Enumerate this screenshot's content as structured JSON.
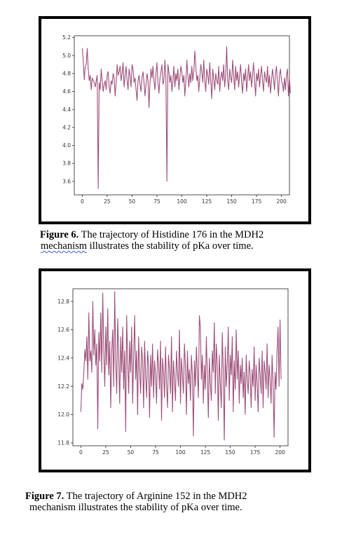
{
  "chart_data": [
    {
      "type": "line",
      "title": "",
      "xlabel": "",
      "ylabel": "",
      "xlim": [
        -8,
        208
      ],
      "ylim": [
        3.45,
        5.22
      ],
      "xticks": [
        0,
        25,
        50,
        75,
        100,
        125,
        150,
        175,
        200
      ],
      "xtick_labels": [
        "0",
        "25",
        "50",
        "75",
        "100",
        "125",
        "150",
        "175",
        "200"
      ],
      "yticks": [
        3.6,
        3.8,
        4.0,
        4.2,
        4.4,
        4.6,
        4.8,
        5.0,
        5.2
      ],
      "ytick_labels": [
        "3.6",
        "3.8",
        "4.0",
        "4.2",
        "4.4",
        "4.6",
        "4.8",
        "5.0",
        "5.2"
      ],
      "grid": false,
      "line_color": "#9e4f7a",
      "series": [
        {
          "values": [
            5.08,
            4.95,
            4.73,
            4.88,
            4.9,
            5.08,
            4.85,
            4.72,
            4.78,
            4.62,
            4.75,
            4.72,
            4.7,
            4.65,
            4.72,
            4.78,
            3.52,
            4.7,
            4.62,
            4.85,
            4.72,
            4.6,
            4.68,
            4.72,
            4.62,
            4.78,
            4.82,
            4.65,
            4.58,
            4.72,
            4.68,
            4.8,
            4.75,
            4.55,
            4.7,
            4.9,
            4.78,
            4.82,
            4.88,
            4.72,
            4.8,
            4.92,
            4.65,
            4.78,
            4.88,
            4.72,
            4.62,
            4.85,
            4.78,
            4.65,
            4.9,
            4.85,
            4.7,
            4.75,
            4.62,
            4.5,
            4.72,
            4.78,
            4.68,
            4.6,
            4.75,
            4.82,
            4.7,
            4.55,
            4.68,
            4.8,
            4.72,
            4.42,
            4.7,
            4.85,
            4.75,
            4.88,
            4.72,
            4.62,
            4.8,
            4.92,
            4.7,
            4.58,
            4.75,
            4.82,
            4.9,
            4.68,
            4.72,
            4.95,
            4.75,
            3.6,
            4.9,
            4.82,
            4.7,
            4.78,
            4.6,
            4.72,
            4.88,
            4.65,
            4.8,
            4.72,
            4.85,
            4.62,
            4.75,
            4.88,
            4.82,
            4.7,
            4.78,
            4.55,
            4.72,
            4.95,
            4.78,
            4.65,
            4.8,
            4.7,
            4.88,
            4.72,
            4.82,
            5.05,
            4.88,
            4.72,
            4.78,
            4.6,
            4.75,
            4.9,
            4.82,
            4.7,
            4.95,
            4.72,
            4.6,
            4.85,
            4.78,
            4.68,
            4.92,
            4.72,
            4.52,
            4.85,
            4.75,
            4.62,
            4.8,
            4.72,
            4.68,
            4.88,
            4.6,
            4.75,
            4.82,
            4.72,
            4.9,
            4.65,
            4.78,
            5.1,
            4.72,
            4.62,
            4.85,
            4.75,
            4.7,
            4.95,
            4.78,
            4.62,
            4.88,
            4.72,
            4.82,
            4.65,
            4.78,
            4.9,
            4.7,
            4.58,
            4.8,
            4.72,
            4.85,
            4.6,
            4.75,
            4.9,
            4.72,
            4.82,
            4.65,
            4.78,
            4.92,
            4.72,
            4.55,
            4.8,
            4.72,
            4.85,
            4.65,
            4.78,
            4.88,
            4.72,
            4.6,
            4.82,
            4.75,
            4.7,
            4.88,
            4.65,
            4.78,
            4.58,
            4.72,
            4.85,
            4.75,
            4.62,
            4.8,
            4.88,
            4.7,
            4.55,
            4.78,
            4.85,
            4.72,
            4.68,
            4.6,
            4.75,
            4.62,
            4.78,
            4.85,
            4.55,
            4.75,
            4.58
          ]
        }
      ]
    },
    {
      "type": "line",
      "title": "",
      "xlabel": "",
      "ylabel": "",
      "xlim": [
        -8,
        208
      ],
      "ylim": [
        11.78,
        12.89
      ],
      "xticks": [
        0,
        25,
        50,
        75,
        100,
        125,
        150,
        175,
        200
      ],
      "xtick_labels": [
        "0",
        "25",
        "50",
        "75",
        "100",
        "125",
        "150",
        "175",
        "200"
      ],
      "yticks": [
        11.8,
        12.0,
        12.2,
        12.4,
        12.6,
        12.8
      ],
      "ytick_labels": [
        "11.8",
        "12.0",
        "12.2",
        "12.4",
        "12.6",
        "12.8"
      ],
      "grid": false,
      "line_color": "#9e4f7a",
      "series": [
        {
          "values": [
            12.02,
            12.22,
            12.18,
            12.3,
            12.46,
            12.38,
            12.55,
            12.25,
            12.72,
            12.38,
            12.45,
            12.3,
            12.8,
            12.42,
            12.6,
            12.35,
            12.5,
            11.9,
            12.58,
            12.38,
            12.72,
            12.3,
            12.86,
            12.45,
            12.2,
            12.62,
            12.35,
            12.75,
            12.28,
            12.52,
            12.05,
            12.45,
            12.6,
            12.2,
            12.87,
            12.38,
            12.15,
            12.68,
            12.42,
            12.08,
            12.55,
            12.3,
            12.62,
            12.18,
            12.45,
            11.88,
            12.7,
            12.38,
            12.15,
            12.52,
            12.3,
            12.62,
            12.08,
            12.42,
            12.7,
            12.25,
            12.45,
            12.0,
            12.55,
            12.32,
            12.15,
            12.48,
            12.38,
            12.05,
            12.52,
            12.28,
            12.12,
            12.45,
            12.35,
            11.98,
            12.42,
            12.2,
            12.5,
            12.12,
            12.38,
            12.28,
            12.08,
            12.46,
            12.35,
            12.18,
            12.52,
            11.96,
            12.4,
            12.3,
            12.12,
            12.48,
            12.22,
            12.05,
            12.42,
            12.32,
            12.15,
            12.55,
            12.02,
            12.38,
            12.25,
            12.1,
            12.45,
            12.3,
            12.2,
            12.6,
            12.08,
            12.4,
            12.28,
            12.15,
            12.5,
            12.35,
            12.0,
            12.45,
            12.22,
            12.32,
            12.1,
            12.42,
            12.28,
            11.85,
            12.38,
            12.2,
            12.48,
            12.3,
            12.12,
            12.7,
            12.62,
            12.25,
            12.42,
            12.08,
            12.35,
            12.18,
            12.55,
            12.28,
            11.98,
            12.4,
            12.22,
            12.1,
            12.45,
            12.3,
            12.65,
            12.15,
            12.5,
            12.35,
            11.96,
            12.42,
            12.22,
            12.05,
            12.58,
            12.3,
            11.82,
            12.48,
            12.2,
            12.35,
            12.62,
            12.1,
            12.42,
            12.28,
            12.55,
            12.02,
            12.38,
            12.18,
            12.6,
            12.25,
            12.45,
            12.08,
            12.35,
            12.22,
            12.4,
            12.12,
            12.3,
            12.0,
            12.42,
            12.25,
            12.15,
            12.38,
            12.28,
            12.05,
            12.32,
            12.2,
            12.48,
            12.1,
            12.35,
            12.22,
            12.02,
            12.4,
            12.28,
            12.15,
            12.45,
            12.05,
            12.38,
            12.3,
            12.18,
            12.5,
            12.12,
            12.35,
            12.25,
            12.08,
            12.42,
            12.22,
            11.84,
            12.3,
            12.18,
            12.45,
            12.62,
            12.2,
            12.67,
            12.25
          ]
        }
      ]
    }
  ],
  "captions": {
    "fig6_label": "Figure  6.",
    "fig6_text_a": " The trajectory of Histidine 176 in the MDH2",
    "fig6_text_b_flagged": "mechanism",
    "fig6_text_b_rest": " illustrates the stability of pKa over time.",
    "fig7_label": "Figure 7.",
    "fig7_text_a": " The trajectory of Arginine 152 in the MDH2",
    "fig7_text_b": "mechanism illustrates the stability of pKa over time."
  }
}
